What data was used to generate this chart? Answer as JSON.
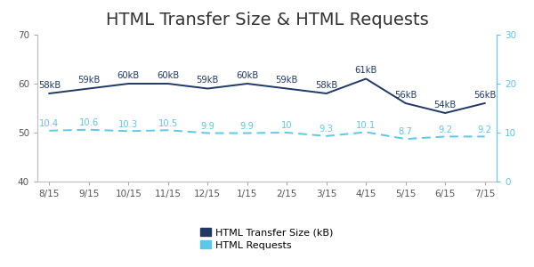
{
  "title": "HTML Transfer Size & HTML Requests",
  "x_labels": [
    "8/15",
    "9/15",
    "10/15",
    "11/15",
    "12/15",
    "1/15",
    "2/15",
    "3/15",
    "4/15",
    "5/15",
    "6/15",
    "7/15"
  ],
  "transfer_size": [
    58,
    59,
    60,
    60,
    59,
    60,
    59,
    58,
    61,
    56,
    54,
    56
  ],
  "transfer_labels": [
    "58kB",
    "59kB",
    "60kB",
    "60kB",
    "59kB",
    "60kB",
    "59kB",
    "58kB",
    "61kB",
    "56kB",
    "54kB",
    "56kB"
  ],
  "requests": [
    10.4,
    10.6,
    10.3,
    10.5,
    9.9,
    9.9,
    10,
    9.3,
    10.1,
    8.7,
    9.2,
    9.2
  ],
  "request_labels": [
    "10.4",
    "10.6",
    "10.3",
    "10.5",
    "9.9",
    "9.9",
    "10",
    "9.3",
    "10.1",
    "8.7",
    "9.2",
    "9.2"
  ],
  "transfer_color": "#1f3864",
  "request_color": "#5bc8e8",
  "left_ylim": [
    40,
    70
  ],
  "left_yticks": [
    40,
    50,
    60,
    70
  ],
  "right_ylim": [
    0,
    30
  ],
  "right_yticks": [
    0,
    10,
    20,
    30
  ],
  "legend_transfer": "HTML Transfer Size (kB)",
  "legend_requests": "HTML Requests",
  "title_fontsize": 14,
  "label_fontsize": 7.2,
  "tick_fontsize": 7.5,
  "background_color": "#ffffff"
}
